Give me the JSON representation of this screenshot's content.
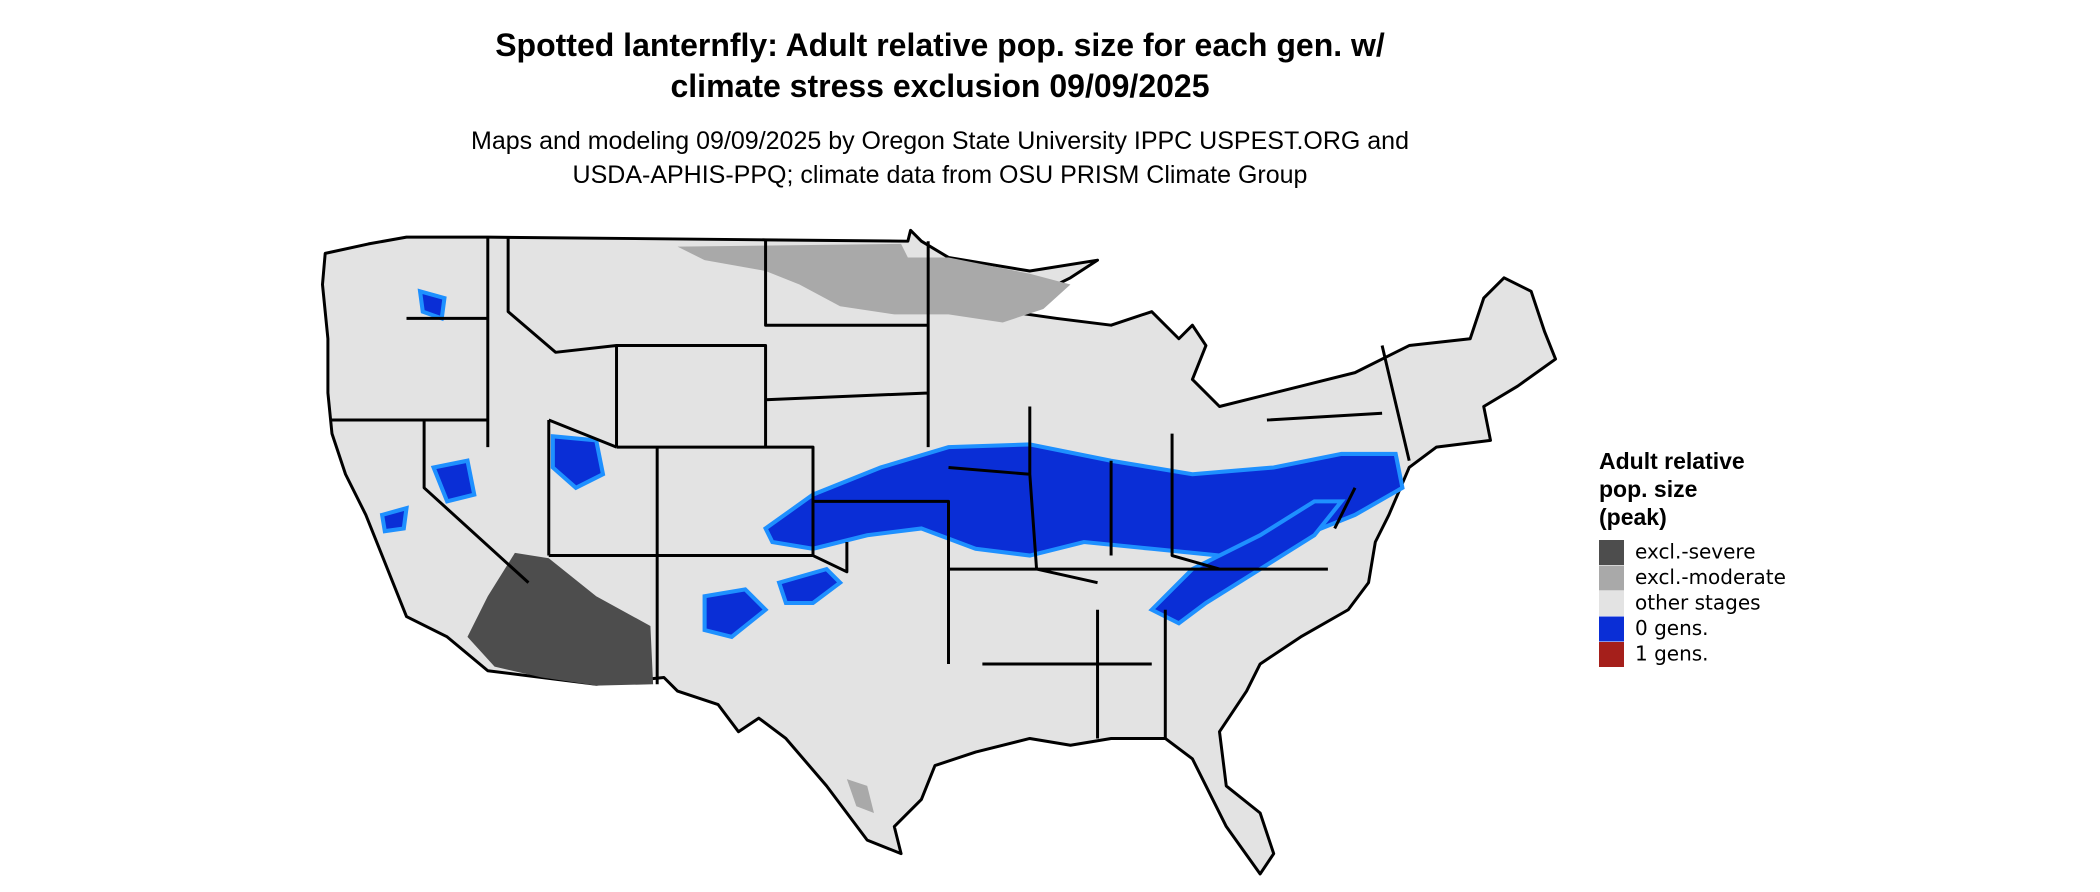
{
  "title": [
    "Spotted lanternfly: Adult relative pop. size for each gen. w/",
    "climate stress exclusion 09/09/2025"
  ],
  "subtitle": [
    "Maps and modeling 09/09/2025 by Oregon State University IPPC USPEST.ORG and",
    "USDA-APHIS-PPQ; climate data from OSU PRISM Climate Group"
  ],
  "legend": {
    "title": [
      "Adult relative",
      "pop. size",
      "(peak)"
    ],
    "items": [
      {
        "label": "excl.-severe",
        "color": "#4d4d4d"
      },
      {
        "label": "excl.-moderate",
        "color": "#a9a9a9"
      },
      {
        "label": "other stages",
        "color": "#e3e3e3"
      },
      {
        "label": "0 gens.",
        "color": "#0a2ed6"
      },
      {
        "label": "1 gens.",
        "color": "#a51f1b"
      }
    ]
  }
}
